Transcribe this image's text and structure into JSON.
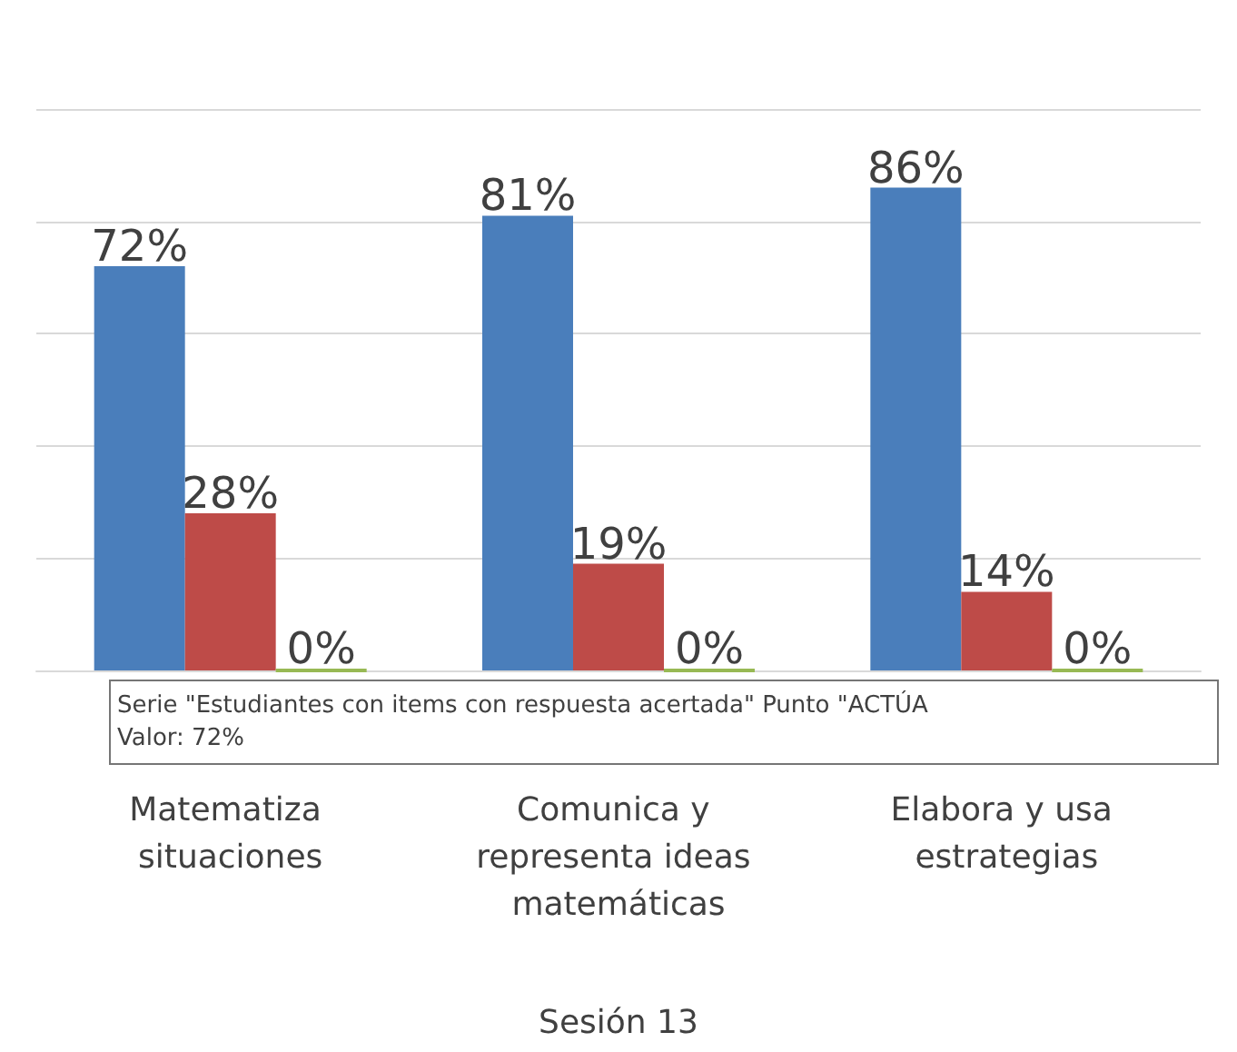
{
  "chart_data": {
    "type": "bar",
    "xlabel": "Sesión 13",
    "categories": [
      "Matematiza situaciones",
      "Comunica y representa ideas matemáticas",
      "Elabora y usa estrategias"
    ],
    "series": [
      {
        "color": "#4a7ebb",
        "values": [
          72,
          81,
          86
        ],
        "value_labels": [
          "72%",
          "81%",
          "86%"
        ]
      },
      {
        "color": "#be4b48",
        "values": [
          28,
          19,
          14
        ],
        "value_labels": [
          "28%",
          "19%",
          "14%"
        ]
      },
      {
        "color": "#98b954",
        "values": [
          0,
          0,
          0
        ],
        "value_labels": [
          "0%",
          "0%",
          "0%"
        ]
      }
    ],
    "grid": "y",
    "annotations": [
      "Serie \"Estudiantes con items con respuesta acertada\" Punto \"ACTÚA\nValor: 72%"
    ]
  }
}
